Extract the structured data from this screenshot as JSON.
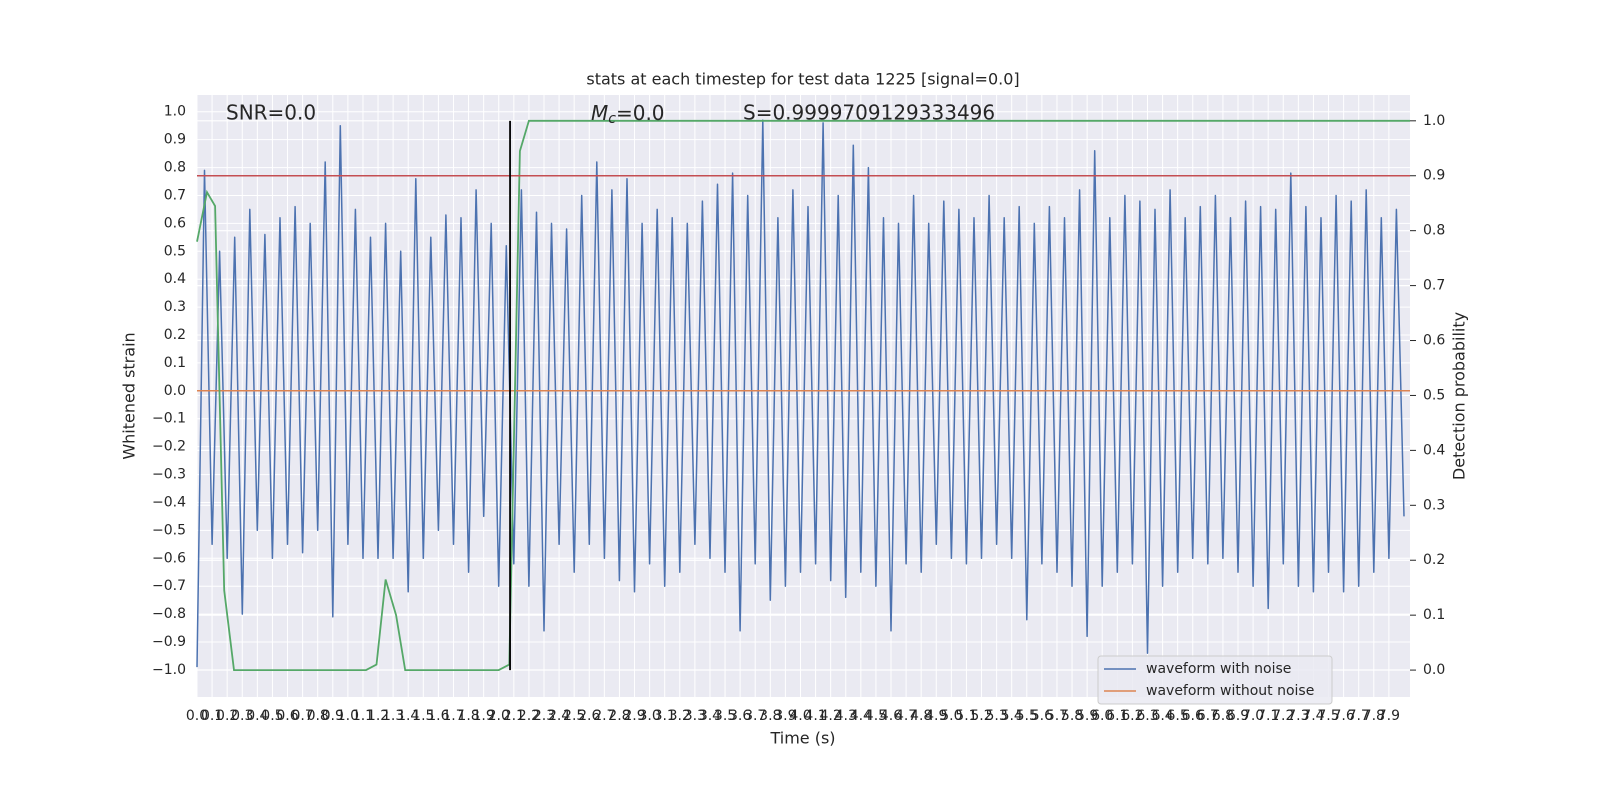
{
  "chart_data": {
    "type": "line",
    "title": "stats at each timestep for test data 1225 [signal=0.0]",
    "x_label": "Time (s)",
    "y_label": "Whitened strain",
    "y2_label": "Detection probability",
    "annotations": {
      "snr": "SNR=0.0",
      "mc": {
        "symbol": "M",
        "subscript": "c",
        "text": "=0.0"
      },
      "s": "S=0.9999709129333496"
    },
    "xlim": [
      0,
      8.04
    ],
    "ylim": [
      -1.097,
      1.06
    ],
    "y2lim": [
      -0.049,
      1.047
    ],
    "grid": true,
    "legend": "lower right",
    "xticks": [
      {
        "value": 0,
        "label": "0.0"
      },
      0.1,
      0.2,
      0.3,
      0.4,
      0.5,
      0.6,
      0.7,
      0.8,
      0.9,
      {
        "value": 1,
        "label": "1.0"
      },
      1.1,
      1.2,
      1.3,
      1.4,
      1.5,
      1.6,
      1.7,
      1.8,
      1.9,
      {
        "value": 2,
        "label": "2.0"
      },
      2.1,
      2.2,
      2.3,
      2.4,
      2.5,
      2.6,
      2.7,
      2.8,
      2.9,
      {
        "value": 3,
        "label": "3.0"
      },
      3.1,
      3.2,
      3.3,
      3.4,
      3.5,
      3.6,
      3.7,
      3.8,
      3.9,
      {
        "value": 4,
        "label": "4.0"
      },
      4.1,
      4.2,
      4.3,
      4.4,
      4.5,
      4.6,
      4.7,
      4.8,
      4.9,
      {
        "value": 5,
        "label": "5.0"
      },
      5.1,
      5.2,
      5.3,
      5.4,
      5.5,
      5.6,
      5.7,
      5.8,
      5.9,
      {
        "value": 6,
        "label": "6.0"
      },
      6.1,
      6.2,
      6.3,
      6.4,
      6.5,
      6.6,
      6.7,
      6.8,
      6.9,
      {
        "value": 7,
        "label": "7.0"
      },
      7.1,
      7.2,
      7.3,
      7.4,
      7.5,
      7.6,
      7.7,
      7.8,
      7.9
    ],
    "yticks": [
      {
        "value": -1,
        "label": "−1.0"
      },
      {
        "value": -0.9,
        "label": "−0.9"
      },
      {
        "value": -0.8,
        "label": "−0.8"
      },
      {
        "value": -0.7,
        "label": "−0.7"
      },
      {
        "value": -0.6,
        "label": "−0.6"
      },
      {
        "value": -0.5,
        "label": "−0.5"
      },
      {
        "value": -0.4,
        "label": "−0.4"
      },
      {
        "value": -0.3,
        "label": "−0.3"
      },
      {
        "value": -0.2,
        "label": "−0.2"
      },
      {
        "value": -0.1,
        "label": "−0.1"
      },
      {
        "value": 0,
        "label": "0.0"
      },
      0.1,
      0.2,
      0.3,
      0.4,
      0.5,
      0.6,
      0.7,
      0.8,
      0.9,
      {
        "value": 1,
        "label": "1.0"
      }
    ],
    "y2ticks": [
      {
        "value": 0,
        "label": "0.0"
      },
      0.1,
      0.2,
      0.3,
      0.4,
      0.5,
      0.6,
      0.7,
      0.8,
      0.9,
      {
        "value": 1,
        "label": "1.0"
      }
    ],
    "series": [
      {
        "name": "waveform with noise",
        "color": "#4c72b0",
        "x": [
          0,
          0.05,
          0.1,
          0.15,
          0.2,
          0.25,
          0.3,
          0.35,
          0.4,
          0.45,
          0.5,
          0.55,
          0.6,
          0.65,
          0.7,
          0.75,
          0.8,
          0.85,
          0.9,
          0.95,
          1,
          1.05,
          1.1,
          1.15,
          1.2,
          1.25,
          1.3,
          1.35,
          1.4,
          1.45,
          1.5,
          1.55,
          1.6,
          1.65,
          1.7,
          1.75,
          1.8,
          1.85,
          1.9,
          1.95,
          2,
          2.05,
          2.1,
          2.15,
          2.2,
          2.25,
          2.3,
          2.35,
          2.4,
          2.45,
          2.5,
          2.55,
          2.6,
          2.65,
          2.7,
          2.75,
          2.8,
          2.85,
          2.9,
          2.95,
          3,
          3.05,
          3.1,
          3.15,
          3.2,
          3.25,
          3.3,
          3.35,
          3.4,
          3.45,
          3.5,
          3.55,
          3.6,
          3.65,
          3.7,
          3.75,
          3.8,
          3.85,
          3.9,
          3.95,
          4,
          4.05,
          4.1,
          4.15,
          4.2,
          4.25,
          4.3,
          4.35,
          4.4,
          4.45,
          4.5,
          4.55,
          4.6,
          4.65,
          4.7,
          4.75,
          4.8,
          4.85,
          4.9,
          4.95,
          5,
          5.05,
          5.1,
          5.15,
          5.2,
          5.25,
          5.3,
          5.35,
          5.4,
          5.45,
          5.5,
          5.55,
          5.6,
          5.65,
          5.7,
          5.75,
          5.8,
          5.85,
          5.9,
          5.95,
          6,
          6.05,
          6.1,
          6.15,
          6.2,
          6.25,
          6.3,
          6.35,
          6.4,
          6.45,
          6.5,
          6.55,
          6.6,
          6.65,
          6.7,
          6.75,
          6.8,
          6.85,
          6.9,
          6.95,
          7,
          7.05,
          7.1,
          7.15,
          7.2,
          7.25,
          7.3,
          7.35,
          7.4,
          7.45,
          7.5,
          7.55,
          7.6,
          7.65,
          7.7,
          7.75,
          7.8,
          7.85,
          7.9,
          7.95,
          8
        ],
        "values": [
          -0.99,
          0.79,
          -0.55,
          0.5,
          -0.6,
          0.55,
          -0.8,
          0.65,
          -0.5,
          0.56,
          -0.6,
          0.62,
          -0.55,
          0.66,
          -0.58,
          0.6,
          -0.5,
          0.82,
          -0.81,
          0.95,
          -0.55,
          0.65,
          -0.6,
          0.55,
          -0.6,
          0.6,
          -0.6,
          0.5,
          -0.72,
          0.76,
          -0.6,
          0.55,
          -0.5,
          0.63,
          -0.55,
          0.62,
          -0.65,
          0.72,
          -0.45,
          0.6,
          -0.7,
          0.52,
          -0.62,
          0.72,
          -0.7,
          0.64,
          -0.86,
          0.6,
          -0.55,
          0.58,
          -0.65,
          0.7,
          -0.55,
          0.82,
          -0.6,
          0.72,
          -0.68,
          0.76,
          -0.72,
          0.6,
          -0.62,
          0.65,
          -0.7,
          0.62,
          -0.65,
          0.6,
          -0.55,
          0.68,
          -0.6,
          0.74,
          -0.65,
          0.78,
          -0.86,
          0.7,
          -0.62,
          0.97,
          -0.75,
          0.62,
          -0.7,
          0.72,
          -0.65,
          0.66,
          -0.62,
          0.96,
          -0.68,
          0.7,
          -0.74,
          0.88,
          -0.65,
          0.8,
          -0.7,
          0.62,
          -0.86,
          0.6,
          -0.62,
          0.7,
          -0.65,
          0.6,
          -0.55,
          0.68,
          -0.6,
          0.65,
          -0.62,
          0.62,
          -0.6,
          0.7,
          -0.55,
          0.62,
          -0.6,
          0.66,
          -0.82,
          0.6,
          -0.62,
          0.66,
          -0.65,
          0.62,
          -0.7,
          0.72,
          -0.88,
          0.86,
          -0.7,
          0.62,
          -0.65,
          0.7,
          -0.62,
          0.68,
          -0.94,
          0.65,
          -0.7,
          0.72,
          -0.65,
          0.62,
          -0.6,
          0.66,
          -0.62,
          0.7,
          -0.6,
          0.62,
          -0.65,
          0.68,
          -0.7,
          0.66,
          -0.78,
          0.65,
          -0.62,
          0.78,
          -0.7,
          0.66,
          -0.72,
          0.62,
          -0.65,
          0.7,
          -0.72,
          0.68,
          -0.7,
          0.72,
          -0.65,
          0.62,
          -0.6,
          0.65,
          -0.45
        ]
      },
      {
        "name": "waveform without noise",
        "color": "#dd8452",
        "x": [
          0,
          8.04
        ],
        "values": [
          0,
          0
        ]
      }
    ],
    "probability": {
      "color": "#55a868",
      "axis": "y2",
      "x": [
        0,
        0.066,
        0.12,
        0.18,
        0.245,
        1.12,
        1.19,
        1.25,
        1.32,
        1.38,
        2.0,
        2.07,
        2.14,
        2.2,
        8.04
      ],
      "values": [
        0.78,
        0.87,
        0.845,
        0.145,
        0,
        0,
        0.01,
        0.165,
        0.1,
        0,
        0,
        0.01,
        0.945,
        1,
        1
      ]
    },
    "threshold": {
      "value": 0.9,
      "axis": "y2",
      "color": "#c44e52"
    },
    "vline": {
      "x": 2.075,
      "ymin": 0,
      "ymax": 1,
      "axis": "y2",
      "color": "#000000"
    }
  }
}
